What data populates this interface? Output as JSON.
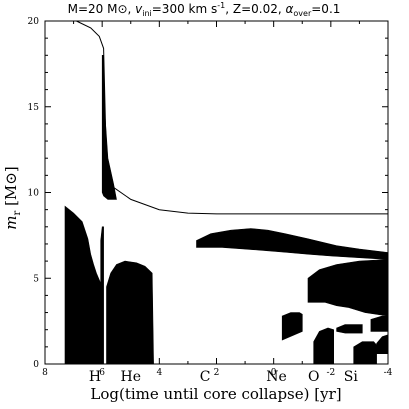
{
  "chart_data": {
    "type": "area",
    "title": "M=20 M⊙, v_ini=300 km s⁻¹, Z=0.02, α_over=0.1",
    "title_parts": {
      "mass": "M=20 M⊙, ",
      "v_sym": "v",
      "v_sub": "ini",
      "v_val": "=300 km s",
      "v_exp": "-1",
      "z": ", Z=0.02, ",
      "alpha_sym": "α",
      "alpha_sub": "over",
      "alpha_val": "=0.1"
    },
    "xlabel": "Log(time until core collapse) [yr]",
    "ylabel": "m",
    "ylabel_sub": "r",
    "ylabel_unit": " [M⊙]",
    "xlim": [
      8,
      -4
    ],
    "ylim": [
      0,
      20
    ],
    "x_ticks": [
      8,
      6,
      4,
      2,
      0,
      -2,
      -4
    ],
    "x_tick_labels": [
      "8",
      "6",
      "4",
      "2",
      "0",
      "-2",
      "-4"
    ],
    "y_ticks": [
      0,
      5,
      10,
      15,
      20
    ],
    "y_tick_labels": [
      "0",
      "5",
      "10",
      "15",
      "20"
    ],
    "burning_labels": [
      {
        "text": "H",
        "x": 6.25
      },
      {
        "text": "He",
        "x": 5.0
      },
      {
        "text": "C",
        "x": 2.4
      },
      {
        "text": "Ne",
        "x": -0.1
      },
      {
        "text": "O",
        "x": -1.4
      },
      {
        "text": "Si",
        "x": -2.7
      }
    ],
    "total_mass_line": [
      [
        6.9,
        20.0
      ],
      [
        6.4,
        19.6
      ],
      [
        6.1,
        19.1
      ],
      [
        5.95,
        18.4
      ],
      [
        5.85,
        11.5
      ],
      [
        5.6,
        10.3
      ],
      [
        5.0,
        9.6
      ],
      [
        4.0,
        9.0
      ],
      [
        3.0,
        8.8
      ],
      [
        2.0,
        8.75
      ],
      [
        0,
        8.75
      ],
      [
        -4,
        8.75
      ]
    ],
    "convective_zones": [
      {
        "name": "H core",
        "points": [
          [
            7.3,
            9.2
          ],
          [
            7.0,
            8.8
          ],
          [
            6.7,
            8.3
          ],
          [
            6.5,
            7.3
          ],
          [
            6.4,
            6.4
          ],
          [
            6.3,
            5.8
          ],
          [
            6.2,
            5.3
          ],
          [
            6.1,
            4.9
          ],
          [
            6.05,
            4.7
          ],
          [
            6.05,
            0
          ],
          [
            7.3,
            0
          ]
        ]
      },
      {
        "name": "H shell lower",
        "points": [
          [
            6.05,
            7.2
          ],
          [
            6.0,
            8.0
          ],
          [
            5.95,
            8.0
          ],
          [
            5.95,
            0
          ],
          [
            6.05,
            0
          ]
        ]
      },
      {
        "name": "H shell upper",
        "points": [
          [
            6.0,
            18.0
          ],
          [
            5.95,
            18.0
          ],
          [
            5.9,
            14.5
          ],
          [
            5.8,
            12.0
          ],
          [
            5.6,
            10.5
          ],
          [
            5.5,
            9.6
          ],
          [
            5.8,
            9.6
          ],
          [
            5.95,
            9.8
          ],
          [
            6.0,
            10.0
          ]
        ]
      },
      {
        "name": "He core",
        "points": [
          [
            5.85,
            4.5
          ],
          [
            5.7,
            5.3
          ],
          [
            5.5,
            5.8
          ],
          [
            5.2,
            6.0
          ],
          [
            4.8,
            5.9
          ],
          [
            4.5,
            5.7
          ],
          [
            4.25,
            5.3
          ],
          [
            4.2,
            0
          ],
          [
            5.85,
            0
          ]
        ]
      },
      {
        "name": "C shell",
        "points": [
          [
            2.7,
            7.2
          ],
          [
            2.2,
            7.6
          ],
          [
            1.5,
            7.8
          ],
          [
            0.8,
            7.9
          ],
          [
            0.2,
            7.8
          ],
          [
            -0.4,
            7.6
          ],
          [
            -1.2,
            7.3
          ],
          [
            -2.2,
            6.9
          ],
          [
            -3.0,
            6.7
          ],
          [
            -4.0,
            6.5
          ],
          [
            -4.0,
            6.1
          ],
          [
            -3.0,
            6.2
          ],
          [
            -2.0,
            6.3
          ],
          [
            -1.2,
            6.4
          ],
          [
            -0.5,
            6.5
          ],
          [
            0.2,
            6.6
          ],
          [
            1.0,
            6.7
          ],
          [
            1.8,
            6.8
          ],
          [
            2.7,
            6.8
          ]
        ]
      },
      {
        "name": "C shell 2",
        "points": [
          [
            -1.2,
            5.0
          ],
          [
            -1.6,
            5.5
          ],
          [
            -2.2,
            5.8
          ],
          [
            -3.0,
            6.0
          ],
          [
            -4.0,
            6.1
          ],
          [
            -4.0,
            2.8
          ],
          [
            -3.2,
            3.0
          ],
          [
            -2.6,
            3.3
          ],
          [
            -2.2,
            3.4
          ],
          [
            -1.8,
            3.6
          ],
          [
            -1.2,
            3.6
          ]
        ]
      },
      {
        "name": "Ne core",
        "points": [
          [
            -0.3,
            2.8
          ],
          [
            -0.6,
            3.0
          ],
          [
            -0.9,
            3.0
          ],
          [
            -1.0,
            2.9
          ],
          [
            -1.0,
            1.9
          ],
          [
            -0.3,
            1.4
          ]
        ]
      },
      {
        "name": "O core",
        "points": [
          [
            -1.4,
            1.3
          ],
          [
            -1.6,
            1.9
          ],
          [
            -1.9,
            2.1
          ],
          [
            -2.1,
            2.0
          ],
          [
            -2.1,
            0
          ],
          [
            -1.4,
            0
          ]
        ]
      },
      {
        "name": "O shell",
        "points": [
          [
            -2.2,
            2.1
          ],
          [
            -2.5,
            2.3
          ],
          [
            -3.1,
            2.3
          ],
          [
            -3.1,
            1.8
          ],
          [
            -2.5,
            1.8
          ],
          [
            -2.2,
            1.9
          ]
        ]
      },
      {
        "name": "O shell 2",
        "points": [
          [
            -3.4,
            2.6
          ],
          [
            -3.8,
            2.8
          ],
          [
            -4.0,
            2.8
          ],
          [
            -4.0,
            1.9
          ],
          [
            -3.4,
            1.9
          ]
        ]
      },
      {
        "name": "Si core",
        "points": [
          [
            -2.8,
            1.0
          ],
          [
            -3.1,
            1.3
          ],
          [
            -3.5,
            1.3
          ],
          [
            -3.6,
            1.1
          ],
          [
            -3.6,
            0
          ],
          [
            -2.8,
            0
          ]
        ]
      },
      {
        "name": "Si shell",
        "points": [
          [
            -3.6,
            1.2
          ],
          [
            -3.8,
            1.6
          ],
          [
            -4.0,
            1.7
          ],
          [
            -4.0,
            0.6
          ],
          [
            -3.6,
            0.6
          ]
        ]
      }
    ],
    "grid": false
  }
}
